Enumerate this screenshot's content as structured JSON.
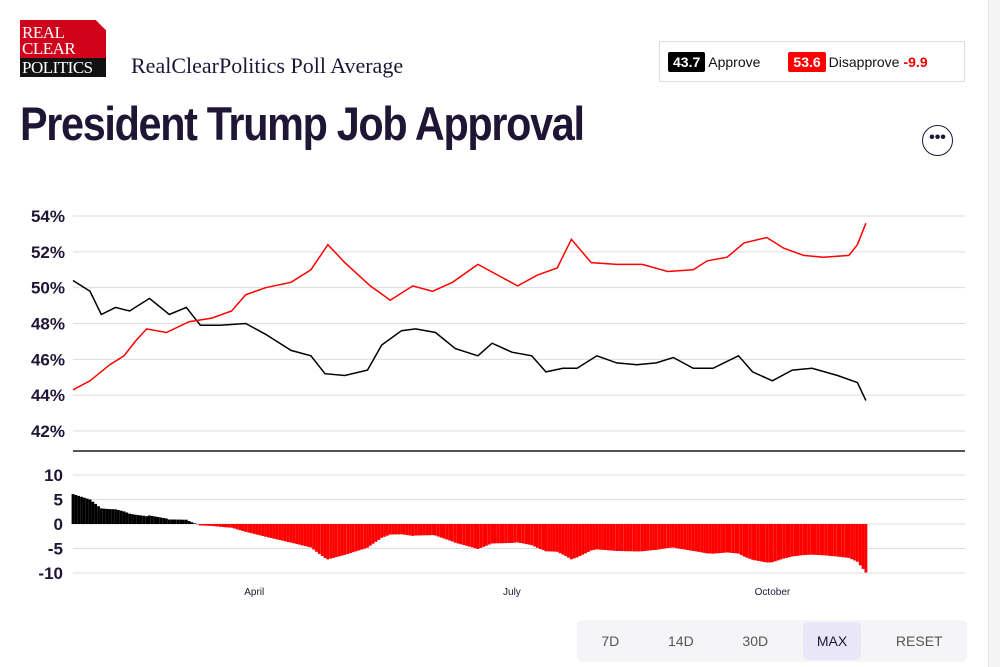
{
  "logo": {
    "lines": [
      "REAL",
      "CLEAR",
      "POLITICS"
    ]
  },
  "header": {
    "subtitle": "RealClearPolitics Poll Average",
    "title": "President Trump Job Approval",
    "more_icon": "ellipsis-icon"
  },
  "summary": {
    "approve_value": "43.7",
    "approve_label": "Approve",
    "disapprove_value": "53.6",
    "disapprove_label": "Disapprove",
    "spread": "-9.9"
  },
  "colors": {
    "approve": "#000000",
    "disapprove": "#ff0000",
    "title": "#1f1535"
  },
  "range_buttons": [
    {
      "label": "7D"
    },
    {
      "label": "14D"
    },
    {
      "label": "30D"
    },
    {
      "label": "MAX",
      "active": true
    },
    {
      "label": "RESET"
    }
  ],
  "chart_data": [
    {
      "type": "line",
      "ylim": [
        41,
        54.5
      ],
      "xlim": [
        "2025-01-27",
        "2025-12-08"
      ],
      "yticks": [
        54,
        52,
        50,
        48,
        46,
        44,
        42
      ],
      "ytick_labels": [
        "54%",
        "52%",
        "50%",
        "48%",
        "46%",
        "44%",
        "42%"
      ],
      "grid": true,
      "series": [
        {
          "key": "approve",
          "color": "#000000",
          "points": [
            [
              "2025-01-27",
              50.4
            ],
            [
              "2025-02-02",
              49.8
            ],
            [
              "2025-02-06",
              48.5
            ],
            [
              "2025-02-11",
              48.9
            ],
            [
              "2025-02-16",
              48.7
            ],
            [
              "2025-02-23",
              49.4
            ],
            [
              "2025-03-02",
              48.5
            ],
            [
              "2025-03-08",
              48.9
            ],
            [
              "2025-03-13",
              47.9
            ],
            [
              "2025-03-20",
              47.9
            ],
            [
              "2025-03-29",
              48.0
            ],
            [
              "2025-04-05",
              47.4
            ],
            [
              "2025-04-14",
              46.5
            ],
            [
              "2025-04-21",
              46.2
            ],
            [
              "2025-04-26",
              45.2
            ],
            [
              "2025-05-03",
              45.1
            ],
            [
              "2025-05-11",
              45.4
            ],
            [
              "2025-05-16",
              46.8
            ],
            [
              "2025-05-23",
              47.6
            ],
            [
              "2025-05-28",
              47.7
            ],
            [
              "2025-06-04",
              47.5
            ],
            [
              "2025-06-11",
              46.6
            ],
            [
              "2025-06-19",
              46.2
            ],
            [
              "2025-06-24",
              46.9
            ],
            [
              "2025-07-01",
              46.4
            ],
            [
              "2025-07-08",
              46.2
            ],
            [
              "2025-07-13",
              45.3
            ],
            [
              "2025-07-19",
              45.5
            ],
            [
              "2025-07-24",
              45.5
            ],
            [
              "2025-07-31",
              46.2
            ],
            [
              "2025-08-07",
              45.8
            ],
            [
              "2025-08-14",
              45.7
            ],
            [
              "2025-08-21",
              45.8
            ],
            [
              "2025-08-27",
              46.1
            ],
            [
              "2025-09-03",
              45.5
            ],
            [
              "2025-09-10",
              45.5
            ],
            [
              "2025-09-19",
              46.2
            ],
            [
              "2025-09-24",
              45.3
            ],
            [
              "2025-10-01",
              44.8
            ],
            [
              "2025-10-08",
              45.4
            ],
            [
              "2025-10-15",
              45.5
            ],
            [
              "2025-10-24",
              45.1
            ],
            [
              "2025-10-31",
              44.7
            ],
            [
              "2025-11-03",
              43.7
            ]
          ]
        },
        {
          "key": "disapprove",
          "color": "#ff0000",
          "points": [
            [
              "2025-01-27",
              44.3
            ],
            [
              "2025-02-02",
              44.8
            ],
            [
              "2025-02-09",
              45.7
            ],
            [
              "2025-02-14",
              46.2
            ],
            [
              "2025-02-18",
              47.0
            ],
            [
              "2025-02-22",
              47.7
            ],
            [
              "2025-03-01",
              47.5
            ],
            [
              "2025-03-09",
              48.1
            ],
            [
              "2025-03-17",
              48.3
            ],
            [
              "2025-03-24",
              48.7
            ],
            [
              "2025-03-29",
              49.6
            ],
            [
              "2025-04-05",
              50.0
            ],
            [
              "2025-04-14",
              50.3
            ],
            [
              "2025-04-21",
              51.0
            ],
            [
              "2025-04-27",
              52.4
            ],
            [
              "2025-05-03",
              51.4
            ],
            [
              "2025-05-12",
              50.1
            ],
            [
              "2025-05-19",
              49.3
            ],
            [
              "2025-05-27",
              50.1
            ],
            [
              "2025-06-03",
              49.8
            ],
            [
              "2025-06-10",
              50.3
            ],
            [
              "2025-06-19",
              51.3
            ],
            [
              "2025-06-26",
              50.7
            ],
            [
              "2025-07-03",
              50.1
            ],
            [
              "2025-07-10",
              50.7
            ],
            [
              "2025-07-17",
              51.1
            ],
            [
              "2025-07-22",
              52.7
            ],
            [
              "2025-07-29",
              51.4
            ],
            [
              "2025-08-07",
              51.3
            ],
            [
              "2025-08-16",
              51.3
            ],
            [
              "2025-08-25",
              50.9
            ],
            [
              "2025-09-03",
              51.0
            ],
            [
              "2025-09-08",
              51.5
            ],
            [
              "2025-09-15",
              51.7
            ],
            [
              "2025-09-21",
              52.5
            ],
            [
              "2025-09-29",
              52.8
            ],
            [
              "2025-10-05",
              52.2
            ],
            [
              "2025-10-12",
              51.8
            ],
            [
              "2025-10-19",
              51.7
            ],
            [
              "2025-10-28",
              51.8
            ],
            [
              "2025-10-31",
              52.4
            ],
            [
              "2025-11-03",
              53.6
            ]
          ]
        }
      ]
    },
    {
      "type": "bar",
      "description_of_values": "spread = approve - disapprove, daily",
      "ylim": [
        -11,
        11
      ],
      "yticks": [
        10,
        5,
        0,
        -5,
        -10
      ],
      "ytick_labels": [
        "10",
        "5",
        "0",
        "-5",
        "-10"
      ],
      "xtick_labels": [
        {
          "date": "2025-04-01",
          "label": "April"
        },
        {
          "date": "2025-07-01",
          "label": "July"
        },
        {
          "date": "2025-10-01",
          "label": "October"
        }
      ],
      "positive_color": "#000000",
      "negative_color": "#ff0000"
    }
  ]
}
